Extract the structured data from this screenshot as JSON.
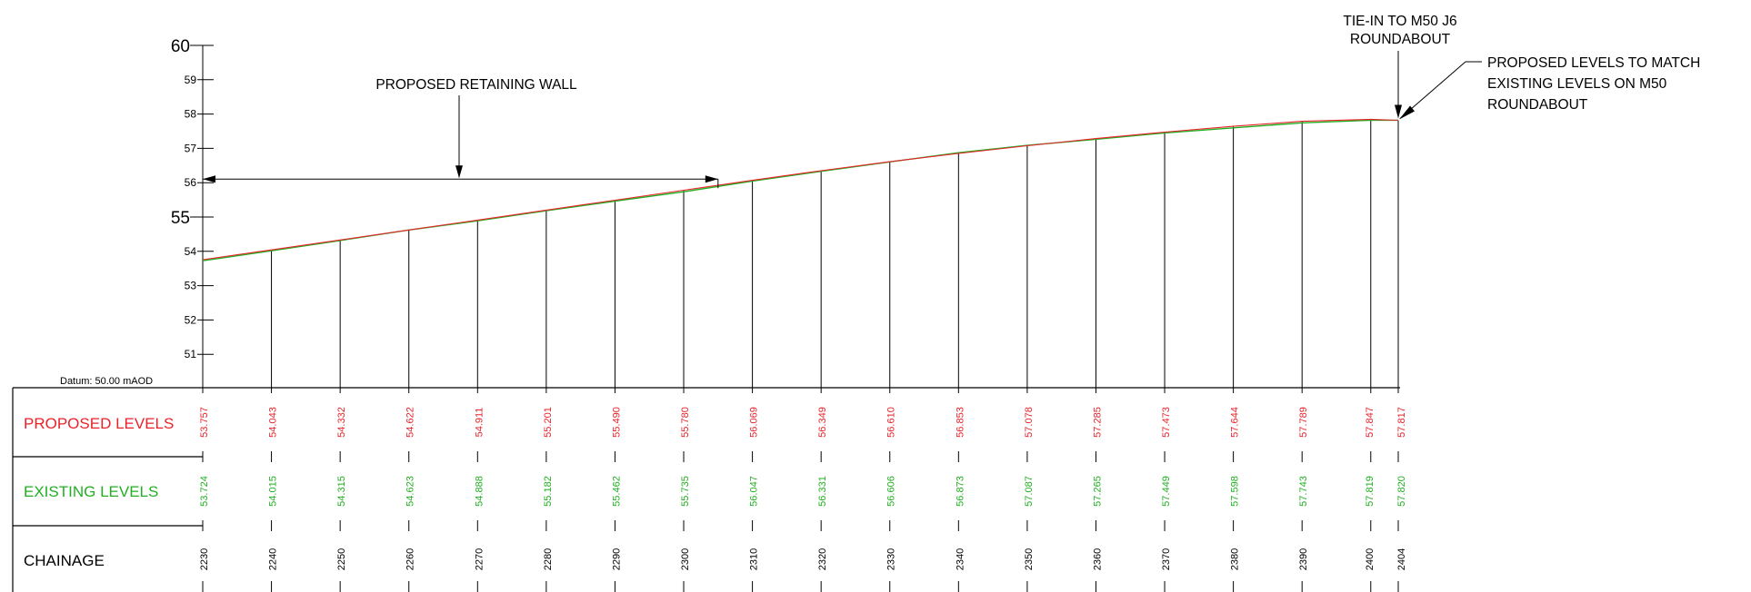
{
  "axis": {
    "ticks": [
      "51",
      "52",
      "53",
      "54",
      "55",
      "56",
      "57",
      "58",
      "59",
      "60"
    ],
    "datum": "Datum: 50.00 mAOD"
  },
  "table": {
    "rows": {
      "proposed": "PROPOSED LEVELS",
      "existing": "EXISTING LEVELS",
      "chainage": "CHAINAGE"
    }
  },
  "annotations": {
    "retaining_wall": "PROPOSED RETAINING WALL",
    "tie_in": [
      "TIE-IN TO M50 J6",
      "ROUNDABOUT"
    ],
    "match": [
      "PROPOSED LEVELS TO MATCH",
      "EXISTING LEVELS ON M50",
      "ROUNDABOUT"
    ]
  },
  "colors": {
    "proposed": "#e8232a",
    "existing": "#22b022",
    "line": "#000000"
  },
  "chart_data": {
    "type": "line",
    "x": [
      2230,
      2240,
      2250,
      2260,
      2270,
      2280,
      2290,
      2300,
      2310,
      2320,
      2330,
      2340,
      2350,
      2360,
      2370,
      2380,
      2390,
      2400,
      2404
    ],
    "x_labels": [
      "2230",
      "2240",
      "2250",
      "2260",
      "2270",
      "2280",
      "2290",
      "2300",
      "2310",
      "2320",
      "2330",
      "2340",
      "2350",
      "2360",
      "2370",
      "2380",
      "2390",
      "2400",
      "2404"
    ],
    "series": [
      {
        "name": "PROPOSED LEVELS",
        "values": [
          53.757,
          54.043,
          54.332,
          54.622,
          54.911,
          55.201,
          55.49,
          55.78,
          56.069,
          56.349,
          56.61,
          56.853,
          57.078,
          57.285,
          57.473,
          57.644,
          57.789,
          57.847,
          57.817
        ],
        "labels": [
          "53.757",
          "54.043",
          "54.332",
          "54.622",
          "54.911",
          "55.201",
          "55.490",
          "55.780",
          "56.069",
          "56.349",
          "56.610",
          "56.853",
          "57.078",
          "57.285",
          "57.473",
          "57.644",
          "57.789",
          "57.847",
          "57.817"
        ]
      },
      {
        "name": "EXISTING LEVELS",
        "values": [
          53.724,
          54.015,
          54.315,
          54.623,
          54.888,
          55.182,
          55.462,
          55.735,
          56.047,
          56.331,
          56.606,
          56.873,
          57.087,
          57.265,
          57.449,
          57.598,
          57.743,
          57.819,
          57.82
        ],
        "labels": [
          "53.724",
          "54.015",
          "54.315",
          "54.623",
          "54.888",
          "55.182",
          "55.462",
          "55.735",
          "56.047",
          "56.331",
          "56.606",
          "56.873",
          "57.087",
          "57.265",
          "57.449",
          "57.598",
          "57.743",
          "57.819",
          "57.820"
        ]
      }
    ],
    "xlabel": "CHAINAGE",
    "ylim": [
      50,
      60
    ],
    "retaining_wall": {
      "from": 2230,
      "to": 2305,
      "level": 56.45
    },
    "grid": false
  }
}
